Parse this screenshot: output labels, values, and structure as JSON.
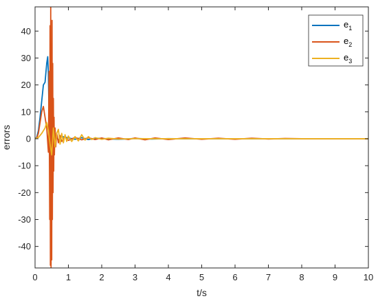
{
  "chart_data": {
    "type": "line",
    "xlabel": "t/s",
    "ylabel": "errors",
    "xlim": [
      0,
      10
    ],
    "ylim": [
      -48,
      49
    ],
    "xticks": [
      0,
      1,
      2,
      3,
      4,
      5,
      6,
      7,
      8,
      9,
      10
    ],
    "yticks": [
      -40,
      -30,
      -20,
      -10,
      0,
      10,
      20,
      30,
      40
    ],
    "grid": false,
    "legend_position": "top-right",
    "series": [
      {
        "name": "e1",
        "legend_main": "e",
        "legend_sub": "1",
        "color": "#0072BD",
        "x": [
          0,
          0.05,
          0.1,
          0.15,
          0.2,
          0.25,
          0.3,
          0.35,
          0.38,
          0.4,
          0.42,
          0.44,
          0.46,
          0.48,
          0.5,
          0.52,
          0.54,
          0.56,
          0.58,
          0.6,
          0.65,
          0.7,
          0.8,
          0.9,
          1.0,
          1.2,
          1.4,
          1.6,
          1.8,
          2.0,
          2.5,
          3.0,
          3.5,
          4.0,
          4.5,
          5.0,
          6.0,
          7.0,
          8.0,
          9.0,
          10.0
        ],
        "y": [
          0,
          0.5,
          3,
          8,
          14,
          20,
          21,
          28,
          30.5,
          24,
          8,
          -10,
          -21,
          -14,
          5,
          14,
          -6,
          3,
          -2,
          1,
          0.5,
          -0.5,
          0.8,
          0.6,
          0.3,
          -0.2,
          0.4,
          -0.3,
          0.2,
          0.1,
          -0.2,
          0.1,
          -0.1,
          0.05,
          -0.05,
          0,
          0,
          0,
          0,
          0,
          0
        ]
      },
      {
        "name": "e2",
        "legend_main": "e",
        "legend_sub": "2",
        "color": "#D95319",
        "x": [
          0,
          0.05,
          0.1,
          0.15,
          0.2,
          0.25,
          0.3,
          0.35,
          0.4,
          0.42,
          0.44,
          0.45,
          0.46,
          0.47,
          0.48,
          0.49,
          0.5,
          0.51,
          0.52,
          0.53,
          0.54,
          0.55,
          0.56,
          0.57,
          0.58,
          0.6,
          0.62,
          0.65,
          0.7,
          0.75,
          0.8,
          0.9,
          1.0,
          1.2,
          1.4,
          1.6,
          1.8,
          2.0,
          2.2,
          2.5,
          2.8,
          3.0,
          3.3,
          3.6,
          4.0,
          4.5,
          5.0,
          5.5,
          6.0,
          6.5,
          7.0,
          7.5,
          8.0,
          9.0,
          10.0
        ],
        "y": [
          0,
          0.3,
          2,
          6,
          10,
          12,
          8,
          4,
          -5,
          25,
          -30,
          42,
          -47,
          50,
          -48,
          35,
          -45,
          44,
          -30,
          28,
          -20,
          15,
          -12,
          8,
          -6,
          4,
          -3,
          2,
          -1.5,
          1.2,
          -1,
          0.8,
          -0.6,
          0.5,
          -0.4,
          0.4,
          -0.3,
          0.3,
          -0.4,
          0.3,
          -0.3,
          0.3,
          -0.4,
          0.3,
          -0.3,
          0.3,
          -0.2,
          0.2,
          -0.2,
          0.2,
          -0.1,
          0.1,
          0,
          0,
          0
        ]
      },
      {
        "name": "e3",
        "legend_main": "e",
        "legend_sub": "3",
        "color": "#EDB120",
        "x": [
          0,
          0.1,
          0.2,
          0.3,
          0.35,
          0.4,
          0.45,
          0.5,
          0.55,
          0.6,
          0.65,
          0.7,
          0.75,
          0.8,
          0.85,
          0.9,
          0.95,
          1.0,
          1.1,
          1.2,
          1.3,
          1.4,
          1.5,
          1.6,
          1.7,
          1.8,
          2.0,
          2.2,
          2.5,
          3.0,
          3.5,
          4.0,
          5.0,
          6.0,
          7.0,
          8.0,
          9.0,
          10.0
        ],
        "y": [
          0,
          0.5,
          2,
          4,
          6,
          3,
          -2,
          -6,
          4,
          -3,
          2,
          3.5,
          -2,
          2,
          -1.5,
          1.5,
          -1,
          1,
          -1,
          0.8,
          -0.8,
          1.5,
          -0.5,
          0.8,
          -0.3,
          0.4,
          -0.2,
          0.2,
          -0.1,
          0.05,
          0,
          0,
          0,
          0,
          0,
          0,
          0,
          0
        ]
      }
    ]
  }
}
